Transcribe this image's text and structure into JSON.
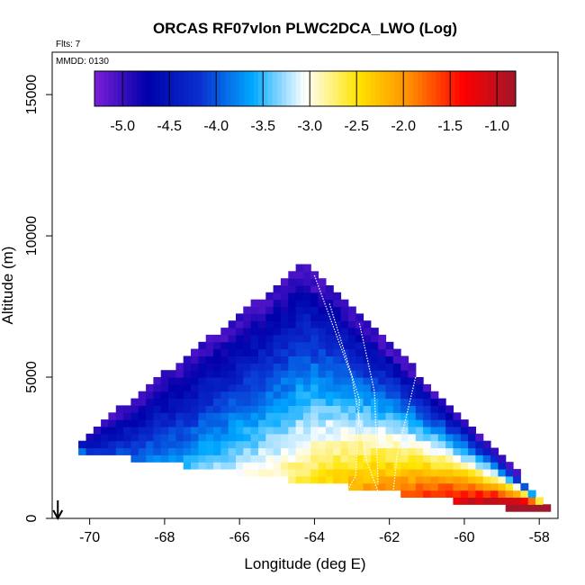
{
  "chart_data": {
    "type": "heatmap",
    "title": "ORCAS RF07vlon PLWC2DCA_LWO (Log)",
    "flights_label": "Flts: 7",
    "date_label": "MMDD: 0130",
    "xlabel": "Longitude (deg E)",
    "ylabel": "Altitude (m)",
    "xlim": [
      -71,
      -57.5
    ],
    "ylim": [
      0,
      16500
    ],
    "x_ticks": [
      -70,
      -68,
      -66,
      -64,
      -62,
      -60,
      -58
    ],
    "x_tick_labels": [
      "-70",
      "-68",
      "-66",
      "-64",
      "-62",
      "-60",
      "-58"
    ],
    "y_ticks": [
      0,
      5000,
      10000,
      15000
    ],
    "y_tick_labels": [
      "0",
      "5000",
      "10000",
      "15000"
    ],
    "colorbar": {
      "range": [
        -5.3,
        -0.8
      ],
      "ticks": [
        -5.0,
        -4.5,
        -4.0,
        -3.5,
        -3.0,
        -2.5,
        -2.0,
        -1.5,
        -1.0
      ],
      "tick_labels": [
        "-5.0",
        "-4.5",
        "-4.0",
        "-3.5",
        "-3.0",
        "-2.5",
        "-2.0",
        "-1.5",
        "-1.0"
      ],
      "colors": [
        "#7b1fd8",
        "#0000aa",
        "#0a2fd0",
        "#00a8ff",
        "#ffffff",
        "#ffe400",
        "#ff8c00",
        "#ff0000",
        "#a0162a"
      ]
    },
    "field": {
      "description": "cloud-liquid log10 value field over a triangular region",
      "edges": [
        [
          -70.5,
          2500
        ],
        [
          -64.3,
          9000
        ],
        [
          -57.8,
          300
        ]
      ],
      "value_at_summit": -5.0,
      "value_at_left": -4.8,
      "value_at_right": -1.3
    },
    "marker": {
      "x": -70.85,
      "label": "down-arrow"
    },
    "flight_tracks": [
      [
        [
          -64.0,
          8600
        ],
        [
          -63.0,
          5000
        ],
        [
          -62.6,
          2000
        ],
        [
          -62.2,
          600
        ]
      ],
      [
        [
          -63.6,
          7600
        ],
        [
          -62.8,
          4200
        ],
        [
          -62.9,
          1500
        ],
        [
          -63.2,
          800
        ]
      ],
      [
        [
          -62.8,
          6900
        ],
        [
          -62.4,
          4500
        ],
        [
          -62.3,
          1200
        ]
      ],
      [
        [
          -61.3,
          5000
        ],
        [
          -61.8,
          2200
        ],
        [
          -61.9,
          900
        ]
      ]
    ]
  }
}
